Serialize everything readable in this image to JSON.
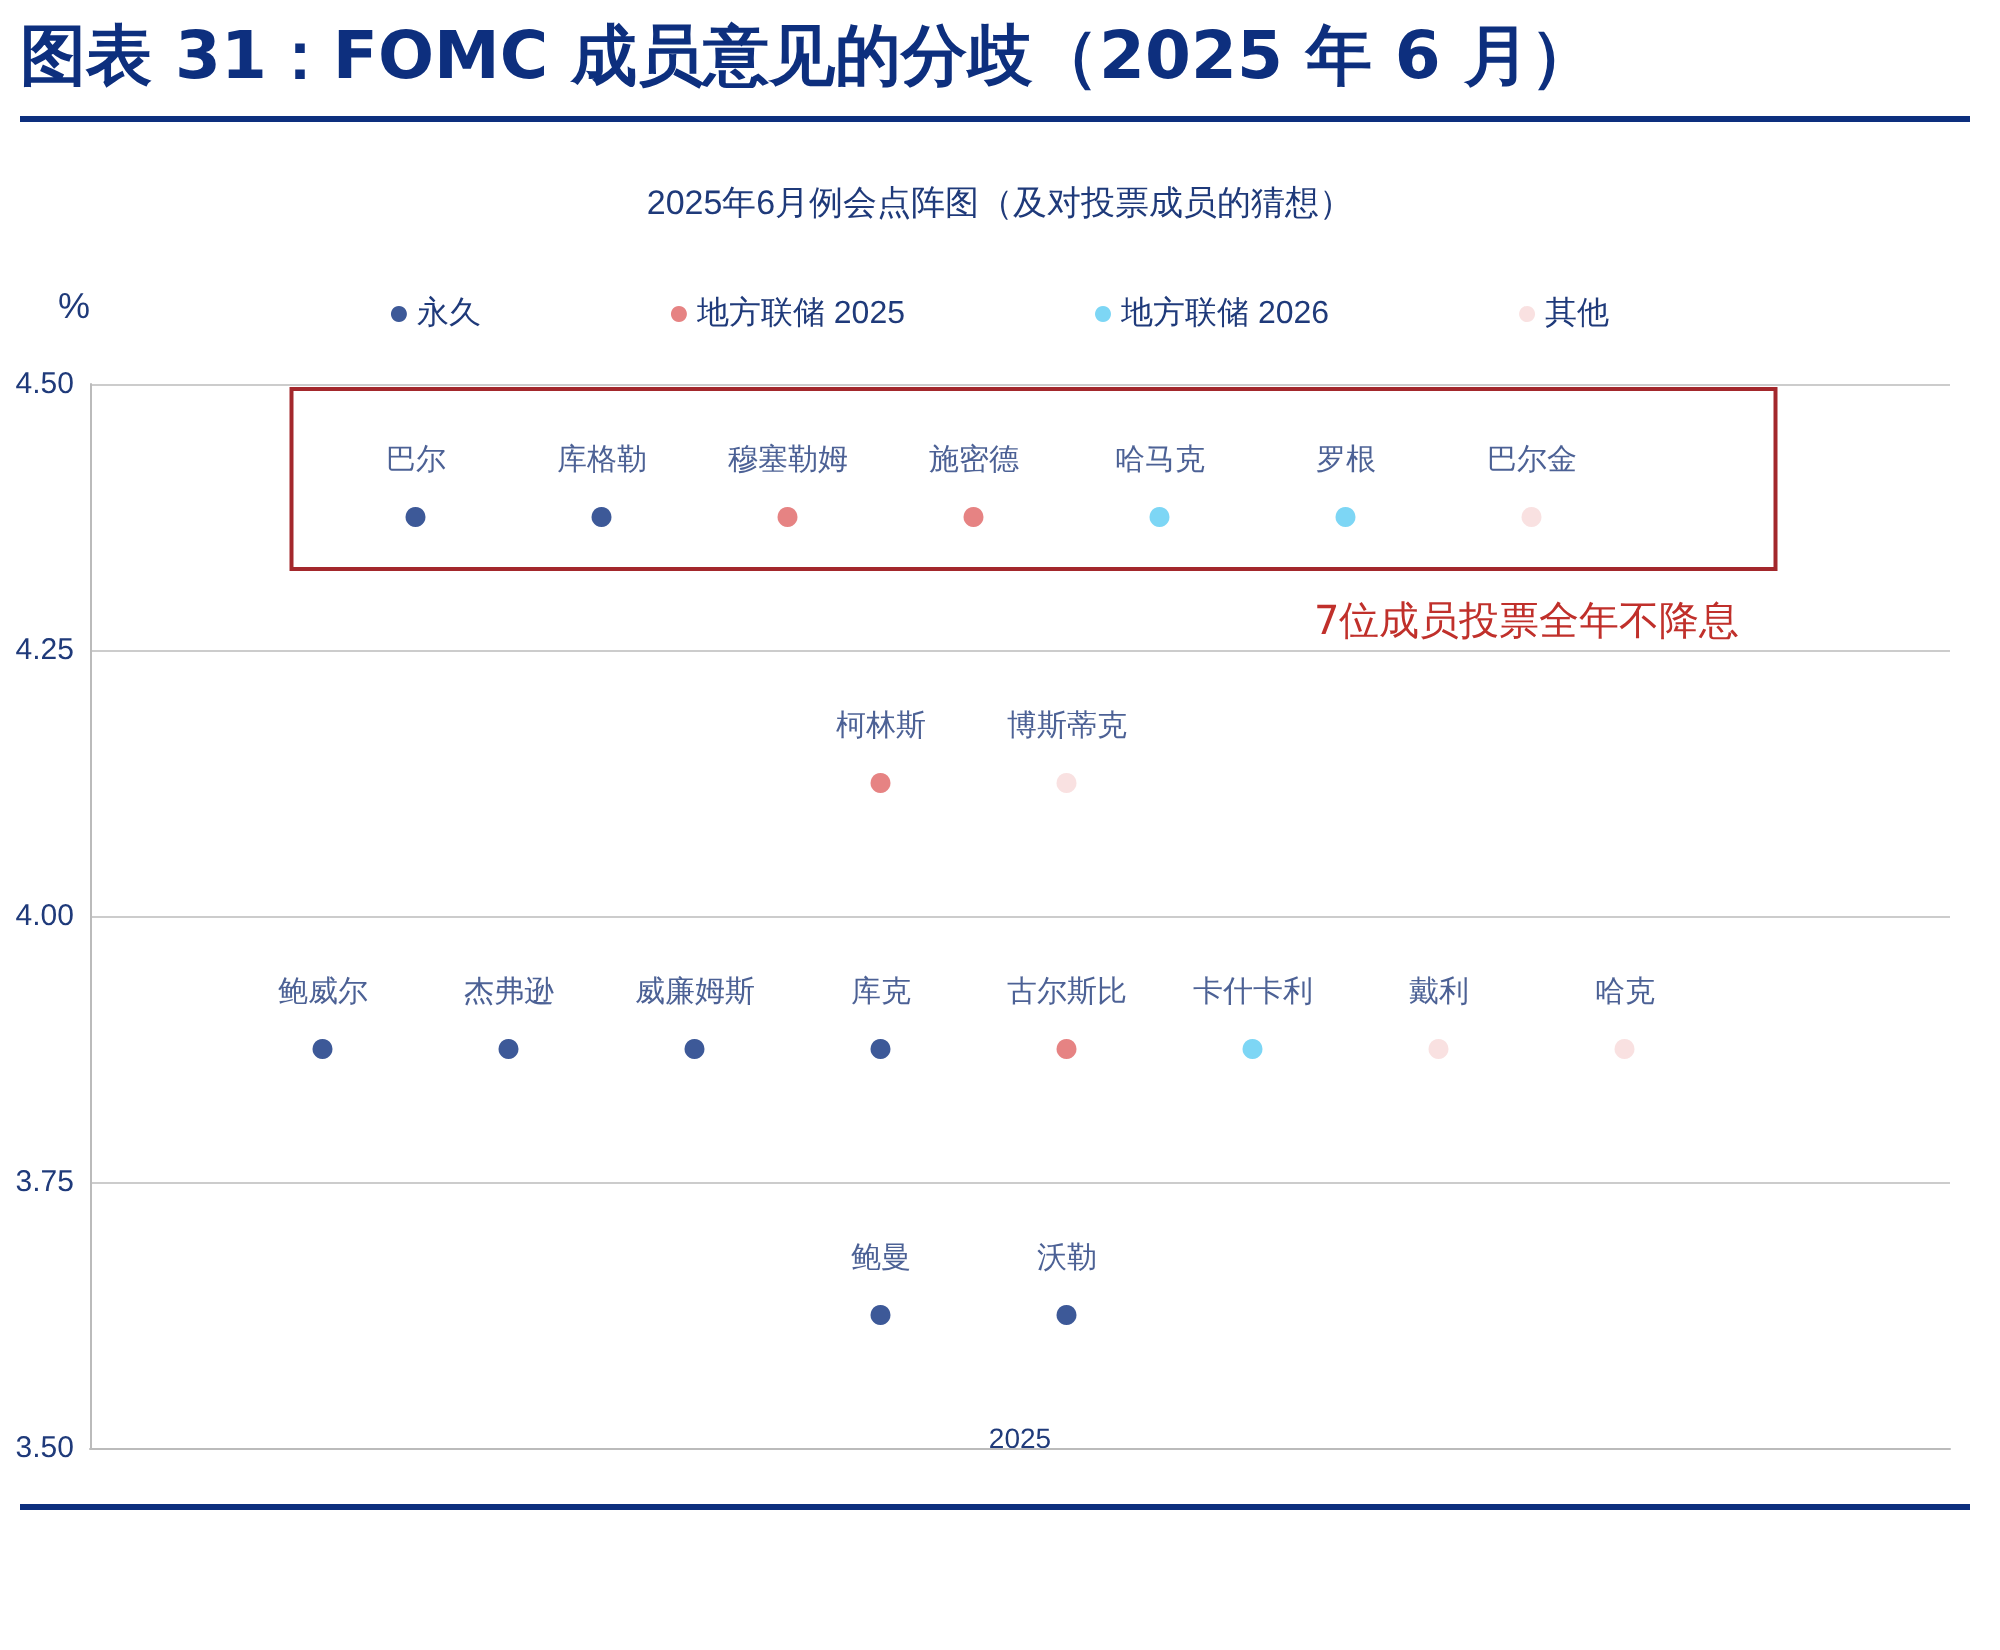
{
  "chart_data": {
    "type": "scatter",
    "title": "图表 31：FOMC 成员意见的分歧（2025 年 6 月）",
    "subtitle": "2025年6月例会点阵图（及对投票成员的猜想）",
    "xlabel": "2025",
    "ylabel": "%",
    "categories": [
      null,
      null,
      null,
      null,
      null,
      null,
      null,
      null,
      null,
      null,
      null,
      null,
      null,
      null,
      null,
      null,
      null,
      null,
      null,
      null
    ],
    "tick_labels": "y",
    "ylim": [
      3.5,
      4.5
    ],
    "yticks": [
      {
        "value": 3.5,
        "label": "3.50"
      },
      {
        "value": 3.75,
        "label": "3.75"
      },
      {
        "value": 4.0,
        "label": "4.00"
      },
      {
        "value": 4.25,
        "label": "4.25"
      },
      {
        "value": 4.5,
        "label": "4.50"
      }
    ],
    "grid": "y",
    "legend": "top",
    "marker": "circle",
    "annotations": [
      "7位成员投票全年不降息"
    ],
    "series": [
      {
        "name": "永久",
        "color": "#0d2f7e",
        "values": [
          null,
          null,
          3.875,
          4.375,
          3.875,
          4.375,
          3.875,
          null,
          3.875,
          null,
          null,
          null,
          null,
          null,
          null,
          null,
          null,
          null,
          null,
          null
        ],
        "value_labels": [
          null,
          null,
          "鲍威尔",
          "巴尔",
          "杰弗逊",
          "库格勒",
          "威廉姆斯",
          null,
          "库克",
          null,
          null,
          null,
          null,
          null,
          null,
          null,
          null,
          null,
          null,
          null
        ]
      },
      {
        "color": "#0d2f7e",
        "values": [
          null,
          null,
          null,
          null,
          null,
          null,
          null,
          null,
          3.625,
          null,
          3.625,
          null,
          null,
          null,
          null,
          null,
          null,
          null,
          null,
          null
        ],
        "value_labels": [
          null,
          null,
          null,
          null,
          null,
          null,
          null,
          null,
          "鲍曼",
          null,
          "沃勒",
          null,
          null,
          null,
          null,
          null,
          null,
          null,
          null,
          null
        ]
      },
      {
        "name": "地方联储 2025",
        "color": "#e06464",
        "values": [
          null,
          null,
          null,
          null,
          null,
          null,
          null,
          4.375,
          4.125,
          4.375,
          3.875,
          null,
          null,
          null,
          null,
          null,
          null,
          null,
          null,
          null
        ],
        "value_labels": [
          null,
          null,
          null,
          null,
          null,
          null,
          null,
          "穆塞勒姆",
          "柯林斯",
          "施密德",
          "古尔斯比",
          null,
          null,
          null,
          null,
          null,
          null,
          null,
          null,
          null
        ]
      },
      {
        "name": "地方联储 2026",
        "color": "#5cccf2",
        "values": [
          null,
          null,
          null,
          null,
          null,
          null,
          null,
          null,
          null,
          null,
          null,
          4.375,
          3.875,
          4.375,
          null,
          null,
          null,
          null,
          null,
          null
        ],
        "value_labels": [
          null,
          null,
          null,
          null,
          null,
          null,
          null,
          null,
          null,
          null,
          null,
          "哈马克",
          "卡什卡利",
          "罗根",
          null,
          null,
          null,
          null,
          null,
          null
        ]
      },
      {
        "name": "其他",
        "color": "#f7d9d9",
        "values": [
          null,
          null,
          null,
          null,
          null,
          null,
          null,
          null,
          null,
          null,
          4.125,
          null,
          null,
          null,
          3.875,
          4.375,
          3.875,
          null,
          null,
          null
        ],
        "value_labels": [
          null,
          null,
          null,
          null,
          null,
          null,
          null,
          null,
          null,
          null,
          "博斯蒂克",
          null,
          null,
          null,
          "戴利",
          "巴尔金",
          "哈克",
          null,
          null,
          null
        ]
      }
    ]
  }
}
